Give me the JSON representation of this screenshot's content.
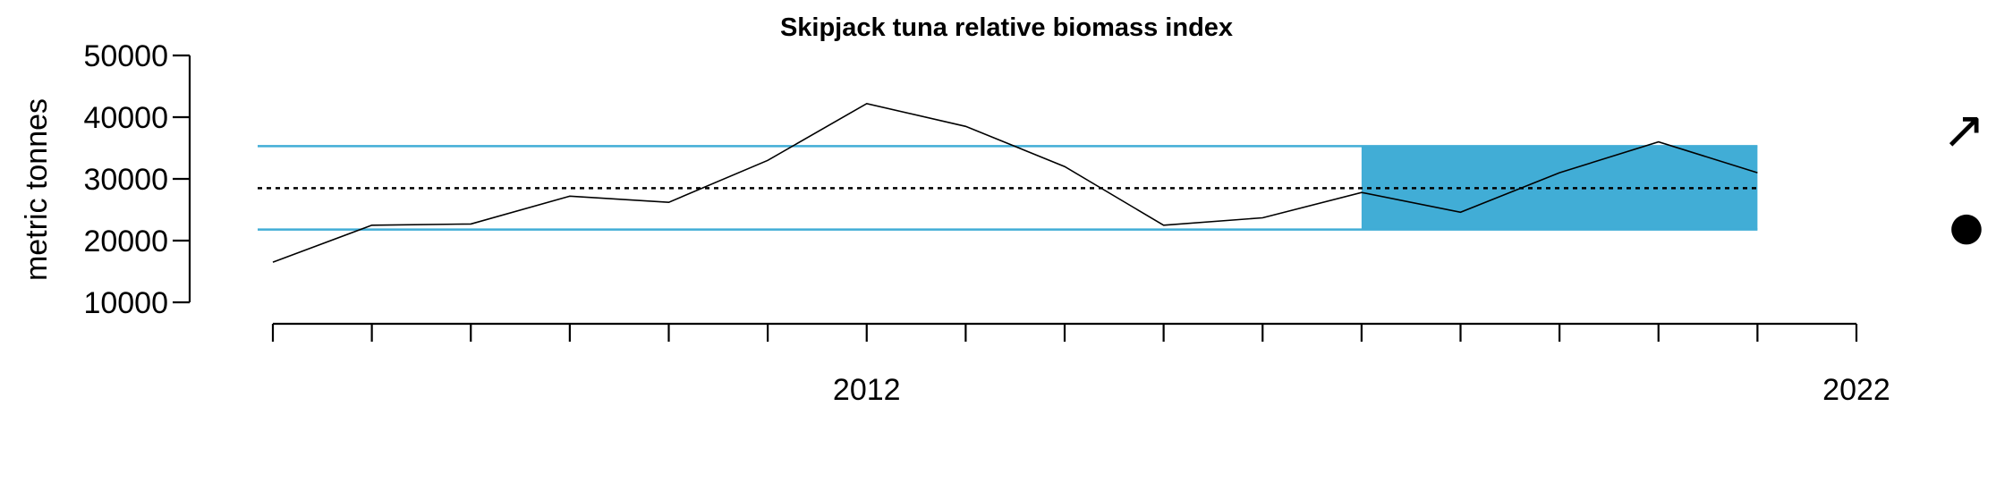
{
  "chart_data": {
    "type": "line",
    "title": "Skipjack tuna relative biomass index",
    "xlabel": "",
    "ylabel": "metric tonnes",
    "x": [
      2006,
      2007,
      2008,
      2009,
      2010,
      2011,
      2012,
      2013,
      2014,
      2015,
      2016,
      2017,
      2018,
      2019,
      2020,
      2021
    ],
    "series": [
      {
        "values": [
          16500,
          22500,
          22700,
          27200,
          26200,
          33000,
          42200,
          38500,
          32000,
          22500,
          23700,
          27800,
          24600,
          31000,
          36000,
          31000
        ]
      }
    ],
    "mean": 28500,
    "sd_band": [
      21800,
      35300
    ],
    "recent_window": [
      2017,
      2021
    ],
    "xlim": [
      2006,
      2022
    ],
    "ylim": [
      10000,
      50000
    ],
    "y_ticks": [
      10000,
      20000,
      30000,
      40000,
      50000
    ],
    "x_ticks": [
      2006,
      2007,
      2008,
      2009,
      2010,
      2011,
      2012,
      2013,
      2014,
      2015,
      2016,
      2017,
      2018,
      2019,
      2020,
      2021,
      2022
    ],
    "x_tick_labels": [
      {
        "value": 2012,
        "label": "2012"
      },
      {
        "value": 2022,
        "label": "2022"
      }
    ],
    "grid": false,
    "colors": {
      "band": "#41ADD6",
      "line": "#000000",
      "mean": "#000000"
    },
    "trend_symbol": "↗",
    "status_symbol": "●"
  }
}
